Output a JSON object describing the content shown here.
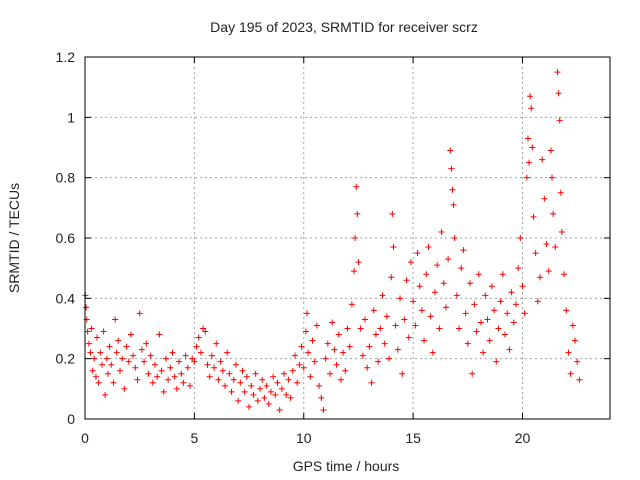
{
  "chart_data": {
    "type": "scatter",
    "title": "Day 195 of 2023, SRMTID for receiver scrz",
    "xlabel": "GPS time / hours",
    "ylabel": "SRMTID / TECUs",
    "xlim": [
      0,
      24
    ],
    "ylim": [
      0,
      1.2
    ],
    "x_ticks": [
      0,
      5,
      10,
      15,
      20
    ],
    "x_tick_labels": [
      "0",
      "5",
      "10",
      "15",
      "20"
    ],
    "y_ticks": [
      0,
      0.2,
      0.4,
      0.6,
      0.8,
      1.0,
      1.2
    ],
    "y_tick_labels": [
      "0",
      "0.2",
      "0.4",
      "0.6",
      "0.8",
      "1",
      "1.2"
    ],
    "grid": true,
    "marker": "plus",
    "color": "#ff0000",
    "series": [
      {
        "name": "SRMTID",
        "points": [
          [
            0.02,
            0.41
          ],
          [
            0.05,
            0.37
          ],
          [
            0.08,
            0.33
          ],
          [
            0.12,
            0.29
          ],
          [
            0.18,
            0.25
          ],
          [
            0.25,
            0.22
          ],
          [
            0.3,
            0.3
          ],
          [
            0.35,
            0.16
          ],
          [
            0.42,
            0.2
          ],
          [
            0.5,
            0.14
          ],
          [
            0.55,
            0.27
          ],
          [
            0.62,
            0.12
          ],
          [
            0.7,
            0.22
          ],
          [
            0.78,
            0.18
          ],
          [
            0.85,
            0.29
          ],
          [
            0.92,
            0.08
          ],
          [
            1.0,
            0.2
          ],
          [
            1.05,
            0.15
          ],
          [
            1.12,
            0.24
          ],
          [
            1.2,
            0.18
          ],
          [
            1.3,
            0.12
          ],
          [
            1.38,
            0.33
          ],
          [
            1.45,
            0.22
          ],
          [
            1.52,
            0.26
          ],
          [
            1.6,
            0.16
          ],
          [
            1.7,
            0.2
          ],
          [
            1.8,
            0.1
          ],
          [
            1.9,
            0.24
          ],
          [
            2.0,
            0.19
          ],
          [
            2.1,
            0.28
          ],
          [
            2.2,
            0.21
          ],
          [
            2.3,
            0.17
          ],
          [
            2.4,
            0.13
          ],
          [
            2.5,
            0.35
          ],
          [
            2.6,
            0.23
          ],
          [
            2.7,
            0.19
          ],
          [
            2.8,
            0.25
          ],
          [
            2.9,
            0.15
          ],
          [
            3.0,
            0.21
          ],
          [
            3.1,
            0.12
          ],
          [
            3.2,
            0.18
          ],
          [
            3.3,
            0.14
          ],
          [
            3.4,
            0.28
          ],
          [
            3.5,
            0.16
          ],
          [
            3.6,
            0.09
          ],
          [
            3.7,
            0.2
          ],
          [
            3.8,
            0.13
          ],
          [
            3.9,
            0.17
          ],
          [
            4.0,
            0.22
          ],
          [
            4.1,
            0.14
          ],
          [
            4.2,
            0.1
          ],
          [
            4.3,
            0.19
          ],
          [
            4.4,
            0.15
          ],
          [
            4.5,
            0.12
          ],
          [
            4.6,
            0.21
          ],
          [
            4.7,
            0.17
          ],
          [
            4.8,
            0.11
          ],
          [
            4.9,
            0.2
          ],
          [
            5.0,
            0.19
          ],
          [
            5.1,
            0.24
          ],
          [
            5.2,
            0.27
          ],
          [
            5.3,
            0.22
          ],
          [
            5.4,
            0.3
          ],
          [
            5.5,
            0.29
          ],
          [
            5.6,
            0.18
          ],
          [
            5.7,
            0.14
          ],
          [
            5.8,
            0.21
          ],
          [
            5.9,
            0.17
          ],
          [
            6.0,
            0.25
          ],
          [
            6.1,
            0.13
          ],
          [
            6.2,
            0.19
          ],
          [
            6.3,
            0.16
          ],
          [
            6.4,
            0.11
          ],
          [
            6.5,
            0.22
          ],
          [
            6.6,
            0.15
          ],
          [
            6.7,
            0.09
          ],
          [
            6.8,
            0.13
          ],
          [
            6.9,
            0.18
          ],
          [
            7.0,
            0.06
          ],
          [
            7.1,
            0.12
          ],
          [
            7.2,
            0.16
          ],
          [
            7.3,
            0.09
          ],
          [
            7.4,
            0.14
          ],
          [
            7.5,
            0.04
          ],
          [
            7.6,
            0.11
          ],
          [
            7.7,
            0.08
          ],
          [
            7.8,
            0.15
          ],
          [
            7.9,
            0.06
          ],
          [
            8.0,
            0.1
          ],
          [
            8.1,
            0.13
          ],
          [
            8.2,
            0.07
          ],
          [
            8.3,
            0.11
          ],
          [
            8.4,
            0.05
          ],
          [
            8.5,
            0.09
          ],
          [
            8.6,
            0.14
          ],
          [
            8.7,
            0.08
          ],
          [
            8.8,
            0.12
          ],
          [
            8.9,
            0.03
          ],
          [
            9.0,
            0.1
          ],
          [
            9.1,
            0.15
          ],
          [
            9.2,
            0.08
          ],
          [
            9.3,
            0.13
          ],
          [
            9.4,
            0.07
          ],
          [
            9.5,
            0.16
          ],
          [
            9.6,
            0.21
          ],
          [
            9.7,
            0.12
          ],
          [
            9.8,
            0.18
          ],
          [
            9.9,
            0.24
          ],
          [
            10.0,
            0.17
          ],
          [
            10.1,
            0.29
          ],
          [
            10.15,
            0.35
          ],
          [
            10.2,
            0.22
          ],
          [
            10.3,
            0.14
          ],
          [
            10.4,
            0.26
          ],
          [
            10.5,
            0.19
          ],
          [
            10.6,
            0.31
          ],
          [
            10.7,
            0.11
          ],
          [
            10.8,
            0.07
          ],
          [
            10.9,
            0.03
          ],
          [
            11.0,
            0.2
          ],
          [
            11.1,
            0.25
          ],
          [
            11.2,
            0.15
          ],
          [
            11.3,
            0.32
          ],
          [
            11.4,
            0.23
          ],
          [
            11.5,
            0.18
          ],
          [
            11.6,
            0.28
          ],
          [
            11.7,
            0.13
          ],
          [
            11.8,
            0.22
          ],
          [
            11.9,
            0.16
          ],
          [
            12.0,
            0.3
          ],
          [
            12.1,
            0.24
          ],
          [
            12.2,
            0.38
          ],
          [
            12.3,
            0.49
          ],
          [
            12.35,
            0.6
          ],
          [
            12.4,
            0.77
          ],
          [
            12.45,
            0.68
          ],
          [
            12.5,
            0.52
          ],
          [
            12.6,
            0.3
          ],
          [
            12.7,
            0.21
          ],
          [
            12.8,
            0.33
          ],
          [
            12.9,
            0.17
          ],
          [
            13.0,
            0.24
          ],
          [
            13.1,
            0.12
          ],
          [
            13.2,
            0.36
          ],
          [
            13.3,
            0.28
          ],
          [
            13.4,
            0.19
          ],
          [
            13.5,
            0.3
          ],
          [
            13.6,
            0.41
          ],
          [
            13.7,
            0.25
          ],
          [
            13.8,
            0.34
          ],
          [
            13.9,
            0.2
          ],
          [
            14.0,
            0.47
          ],
          [
            14.05,
            0.68
          ],
          [
            14.1,
            0.57
          ],
          [
            14.2,
            0.31
          ],
          [
            14.3,
            0.23
          ],
          [
            14.4,
            0.4
          ],
          [
            14.5,
            0.15
          ],
          [
            14.6,
            0.33
          ],
          [
            14.7,
            0.46
          ],
          [
            14.8,
            0.27
          ],
          [
            14.9,
            0.52
          ],
          [
            15.0,
            0.39
          ],
          [
            15.1,
            0.31
          ],
          [
            15.2,
            0.55
          ],
          [
            15.3,
            0.44
          ],
          [
            15.4,
            0.36
          ],
          [
            15.5,
            0.26
          ],
          [
            15.6,
            0.48
          ],
          [
            15.7,
            0.57
          ],
          [
            15.8,
            0.34
          ],
          [
            15.9,
            0.22
          ],
          [
            16.0,
            0.42
          ],
          [
            16.1,
            0.51
          ],
          [
            16.2,
            0.3
          ],
          [
            16.3,
            0.62
          ],
          [
            16.4,
            0.45
          ],
          [
            16.5,
            0.37
          ],
          [
            16.6,
            0.53
          ],
          [
            16.7,
            0.89
          ],
          [
            16.75,
            0.83
          ],
          [
            16.8,
            0.76
          ],
          [
            16.85,
            0.71
          ],
          [
            16.9,
            0.6
          ],
          [
            17.0,
            0.41
          ],
          [
            17.1,
            0.3
          ],
          [
            17.2,
            0.5
          ],
          [
            17.3,
            0.56
          ],
          [
            17.4,
            0.35
          ],
          [
            17.5,
            0.25
          ],
          [
            17.6,
            0.45
          ],
          [
            17.7,
            0.15
          ],
          [
            17.8,
            0.38
          ],
          [
            17.9,
            0.29
          ],
          [
            18.0,
            0.48
          ],
          [
            18.1,
            0.32
          ],
          [
            18.2,
            0.22
          ],
          [
            18.3,
            0.41
          ],
          [
            18.4,
            0.33
          ],
          [
            18.5,
            0.26
          ],
          [
            18.6,
            0.44
          ],
          [
            18.7,
            0.36
          ],
          [
            18.8,
            0.19
          ],
          [
            18.9,
            0.3
          ],
          [
            19.0,
            0.39
          ],
          [
            19.1,
            0.48
          ],
          [
            19.2,
            0.28
          ],
          [
            19.3,
            0.35
          ],
          [
            19.4,
            0.23
          ],
          [
            19.5,
            0.42
          ],
          [
            19.6,
            0.32
          ],
          [
            19.7,
            0.38
          ],
          [
            19.8,
            0.5
          ],
          [
            19.9,
            0.6
          ],
          [
            20.0,
            0.44
          ],
          [
            20.1,
            0.35
          ],
          [
            20.2,
            0.8
          ],
          [
            20.25,
            0.93
          ],
          [
            20.3,
            0.85
          ],
          [
            20.35,
            1.07
          ],
          [
            20.4,
            1.03
          ],
          [
            20.45,
            0.9
          ],
          [
            20.5,
            0.67
          ],
          [
            20.6,
            0.55
          ],
          [
            20.7,
            0.39
          ],
          [
            20.8,
            0.47
          ],
          [
            20.9,
            0.86
          ],
          [
            21.0,
            0.73
          ],
          [
            21.1,
            0.58
          ],
          [
            21.2,
            0.49
          ],
          [
            21.3,
            0.89
          ],
          [
            21.35,
            0.8
          ],
          [
            21.4,
            0.68
          ],
          [
            21.5,
            0.57
          ],
          [
            21.6,
            1.15
          ],
          [
            21.65,
            1.08
          ],
          [
            21.7,
            0.99
          ],
          [
            21.75,
            0.75
          ],
          [
            21.8,
            0.62
          ],
          [
            21.9,
            0.48
          ],
          [
            22.0,
            0.36
          ],
          [
            22.1,
            0.22
          ],
          [
            22.2,
            0.15
          ],
          [
            22.3,
            0.31
          ],
          [
            22.4,
            0.26
          ],
          [
            22.5,
            0.19
          ],
          [
            22.6,
            0.13
          ]
        ]
      }
    ]
  }
}
